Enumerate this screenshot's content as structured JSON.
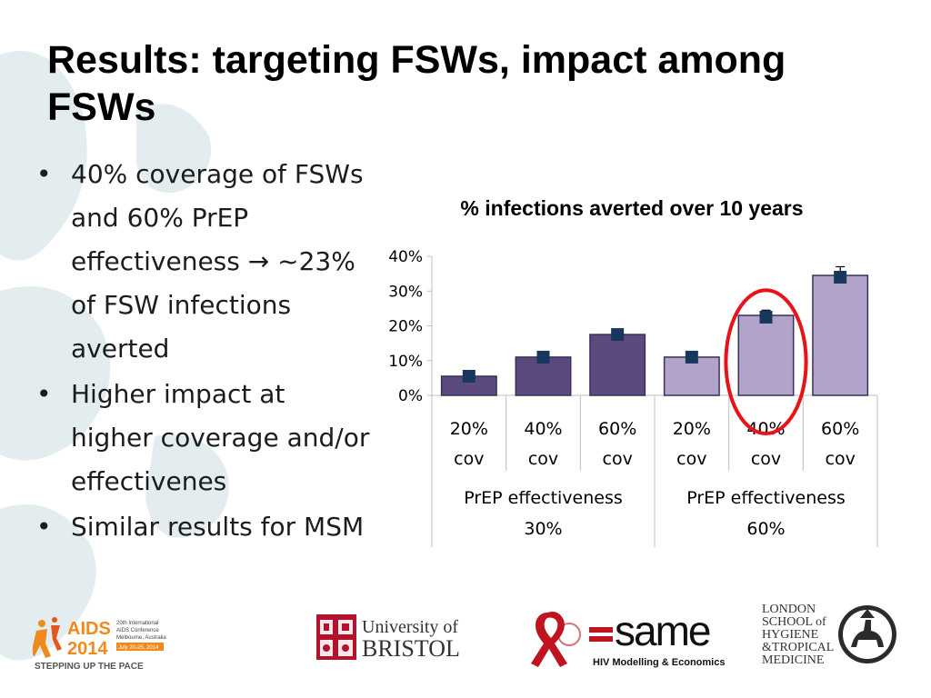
{
  "slide": {
    "title": "Results: targeting FSWs, impact among FSWs",
    "bullets": [
      "40% coverage of FSWs and 60% PrEP effectiveness → ~23% of FSW infections averted",
      "Higher impact at higher coverage and/or effectivenes",
      "Similar results for MSM"
    ],
    "bullet_symbol": "•"
  },
  "chart_data": {
    "type": "bar",
    "title": "% infections averted over 10 years",
    "y_ticks": [
      "0%",
      "10%",
      "20%",
      "30%",
      "40%"
    ],
    "ylim": [
      0,
      40
    ],
    "categories": [
      [
        "20%",
        "cov"
      ],
      [
        "40%",
        "cov"
      ],
      [
        "60%",
        "cov"
      ],
      [
        "20%",
        "cov"
      ],
      [
        "40%",
        "cov"
      ],
      [
        "60%",
        "cov"
      ]
    ],
    "groups": [
      {
        "label": [
          "PrEP effectiveness",
          "30%"
        ],
        "color": "#5b4a7e"
      },
      {
        "label": [
          "PrEP effectiveness",
          "60%"
        ],
        "color": "#b1a3c9"
      }
    ],
    "values": [
      5.5,
      11,
      17.5,
      11,
      23,
      34.5
    ],
    "error_low": [
      5.0,
      10.5,
      16.5,
      10.5,
      21.5,
      33.0
    ],
    "error_high": [
      6.0,
      11.5,
      18.5,
      11.5,
      24.5,
      37.0
    ],
    "markers": [
      5.5,
      11,
      17.5,
      11,
      22.5,
      34
    ],
    "highlight_index": 4,
    "highlight_color": "#e8121a",
    "marker_color": "#17375e",
    "grid": false
  },
  "logos": {
    "aids": {
      "line1": "AIDS",
      "line2": "2014",
      "tagline": "STEPPING UP THE PACE",
      "info": [
        "20th International",
        "AIDS Conference",
        "Melbourne, Australia",
        "July 20-25, 2014"
      ]
    },
    "bristol": {
      "line1": "University of",
      "line2": "BRISTOL"
    },
    "same": {
      "word": "same",
      "tagline": "HIV Modelling & Economics"
    },
    "lshtm": {
      "lines": [
        "LONDON",
        "SCHOOL of",
        "HYGIENE",
        "&TROPICAL",
        "MEDICINE"
      ]
    },
    "colors": {
      "aids_orange": "#f08a1c",
      "bristol_red": "#b3122e",
      "ribbon_red": "#c1121f"
    }
  }
}
